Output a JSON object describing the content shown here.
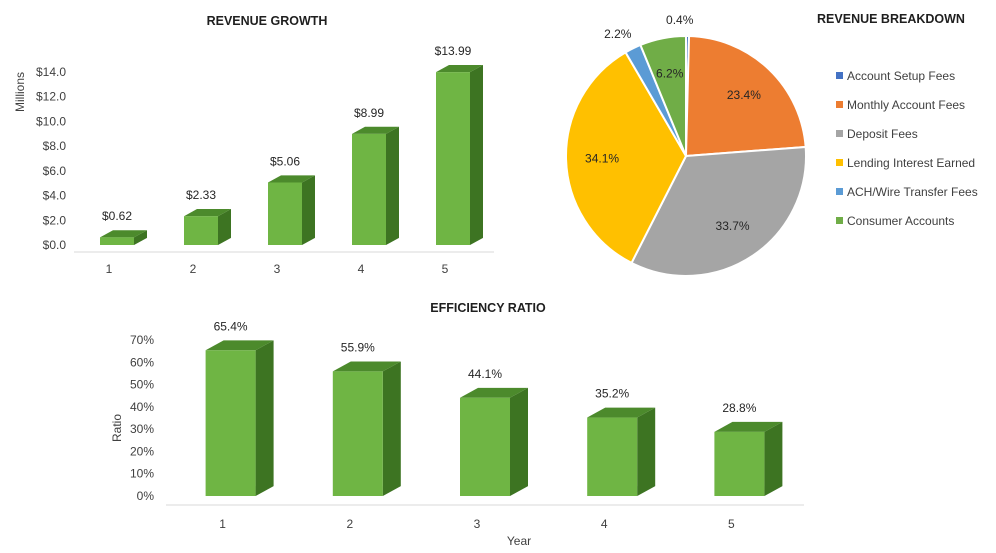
{
  "colors": {
    "bar_front": "#6fb544",
    "bar_top": "#4c8a2c",
    "bar_side": "#3d7422",
    "axis_line": "#d9d9d9",
    "text": "#404040"
  },
  "chart_data": [
    {
      "id": "revenue-growth",
      "type": "bar",
      "title": "REVENUE GROWTH",
      "xlabel": "",
      "ylabel": "Millions",
      "categories": [
        "1",
        "2",
        "3",
        "4",
        "5"
      ],
      "values": [
        0.62,
        2.33,
        5.06,
        8.99,
        13.99
      ],
      "data_labels": [
        "$0.62",
        "$2.33",
        "$5.06",
        "$8.99",
        "$13.99"
      ],
      "yticks": [
        "$0.0",
        "$2.0",
        "$4.0",
        "$6.0",
        "$8.0",
        "$10.0",
        "$12.0",
        "$14.0"
      ],
      "ylim": [
        0,
        14
      ],
      "grid": false,
      "three_d": true
    },
    {
      "id": "revenue-breakdown",
      "type": "pie",
      "title": "REVENUE BREAKDOWN",
      "legend_position": "right",
      "slices": [
        {
          "name": "Account Setup Fees",
          "value": 0.4,
          "label": "0.4%",
          "color": "#4472c4"
        },
        {
          "name": "Monthly Account Fees",
          "value": 23.4,
          "label": "23.4%",
          "color": "#ed7d31"
        },
        {
          "name": "Deposit Fees",
          "value": 33.7,
          "label": "33.7%",
          "color": "#a5a5a5"
        },
        {
          "name": "Lending Interest Earned",
          "value": 34.1,
          "label": "34.1%",
          "color": "#ffc000"
        },
        {
          "name": "ACH/Wire Transfer Fees",
          "value": 2.2,
          "label": "2.2%",
          "color": "#5b9bd5"
        },
        {
          "name": "Consumer Accounts",
          "value": 6.2,
          "label": "6.2%",
          "color": "#70ad47"
        }
      ]
    },
    {
      "id": "efficiency-ratio",
      "type": "bar",
      "title": "EFFICIENCY RATIO",
      "xlabel": "Year",
      "ylabel": "Ratio",
      "categories": [
        "1",
        "2",
        "3",
        "4",
        "5"
      ],
      "values": [
        65.4,
        55.9,
        44.1,
        35.2,
        28.8
      ],
      "data_labels": [
        "65.4%",
        "55.9%",
        "44.1%",
        "35.2%",
        "28.8%"
      ],
      "yticks": [
        "0%",
        "10%",
        "20%",
        "30%",
        "40%",
        "50%",
        "60%",
        "70%"
      ],
      "ylim": [
        0,
        70
      ],
      "grid": false,
      "three_d": true
    }
  ]
}
